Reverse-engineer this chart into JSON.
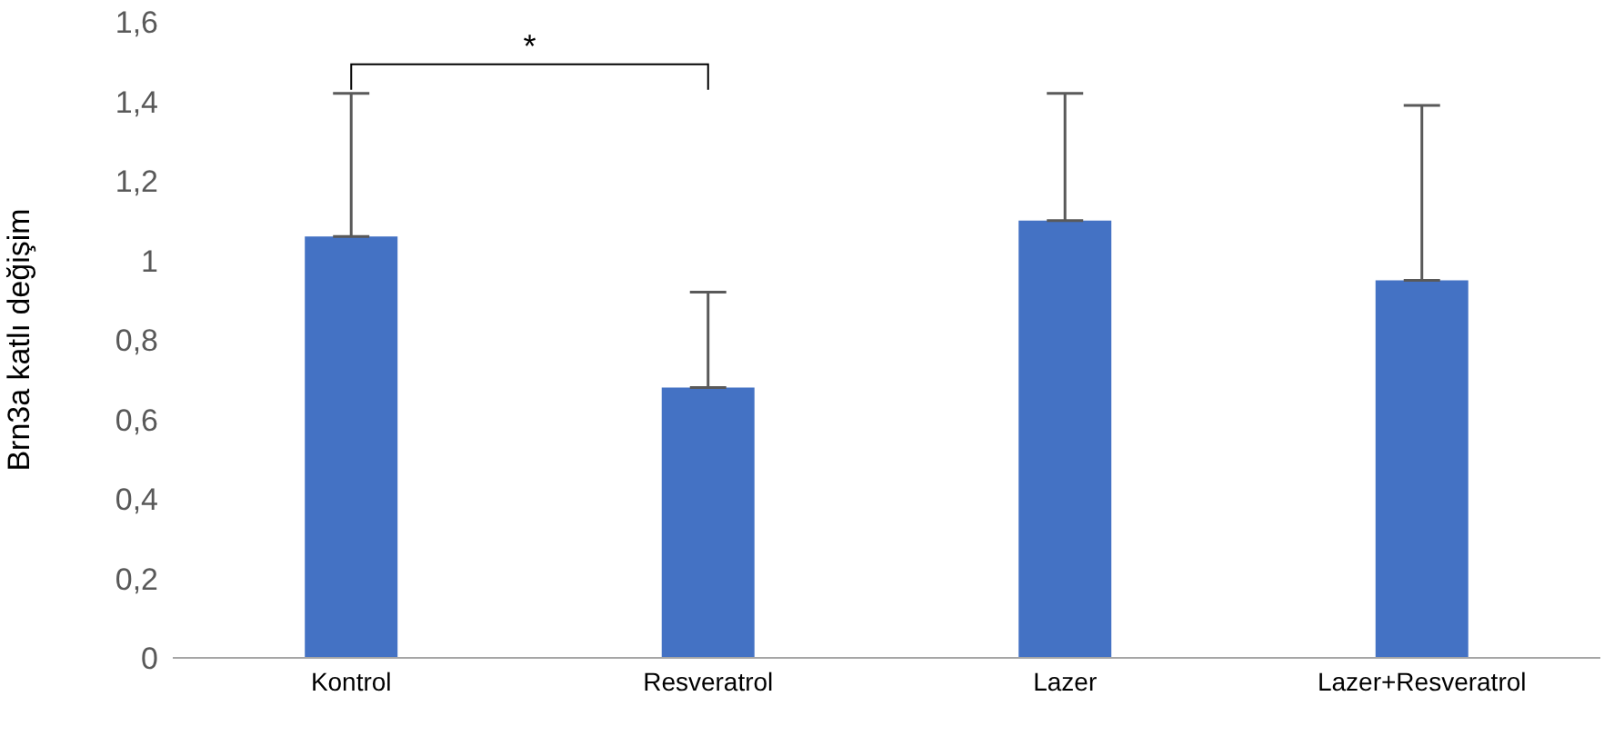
{
  "chart_data": {
    "type": "bar",
    "ylabel": "Brn3a katlı değişim",
    "categories": [
      "Kontrol",
      "Resveratrol",
      "Lazer",
      "Lazer+Resveratrol"
    ],
    "values": [
      1.06,
      0.68,
      1.1,
      0.95
    ],
    "errors": [
      [
        1.06,
        1.42
      ],
      [
        0.68,
        0.92
      ],
      [
        1.1,
        1.42
      ],
      [
        0.95,
        1.39
      ]
    ],
    "color": "#4472c4",
    "ylim": [
      0,
      1.6
    ],
    "yticks": [
      {
        "value": 0,
        "label": "0"
      },
      {
        "value": 0.2,
        "label": "0,2"
      },
      {
        "value": 0.4,
        "label": "0,4"
      },
      {
        "value": 0.6,
        "label": "0,6"
      },
      {
        "value": 0.8,
        "label": "0,8"
      },
      {
        "value": 1,
        "label": "1"
      },
      {
        "value": 1.2,
        "label": "1,2"
      },
      {
        "value": 1.4,
        "label": "1,4"
      },
      {
        "value": 1.6,
        "label": "1,6"
      }
    ],
    "grid": false,
    "annotations": [
      "*"
    ]
  }
}
